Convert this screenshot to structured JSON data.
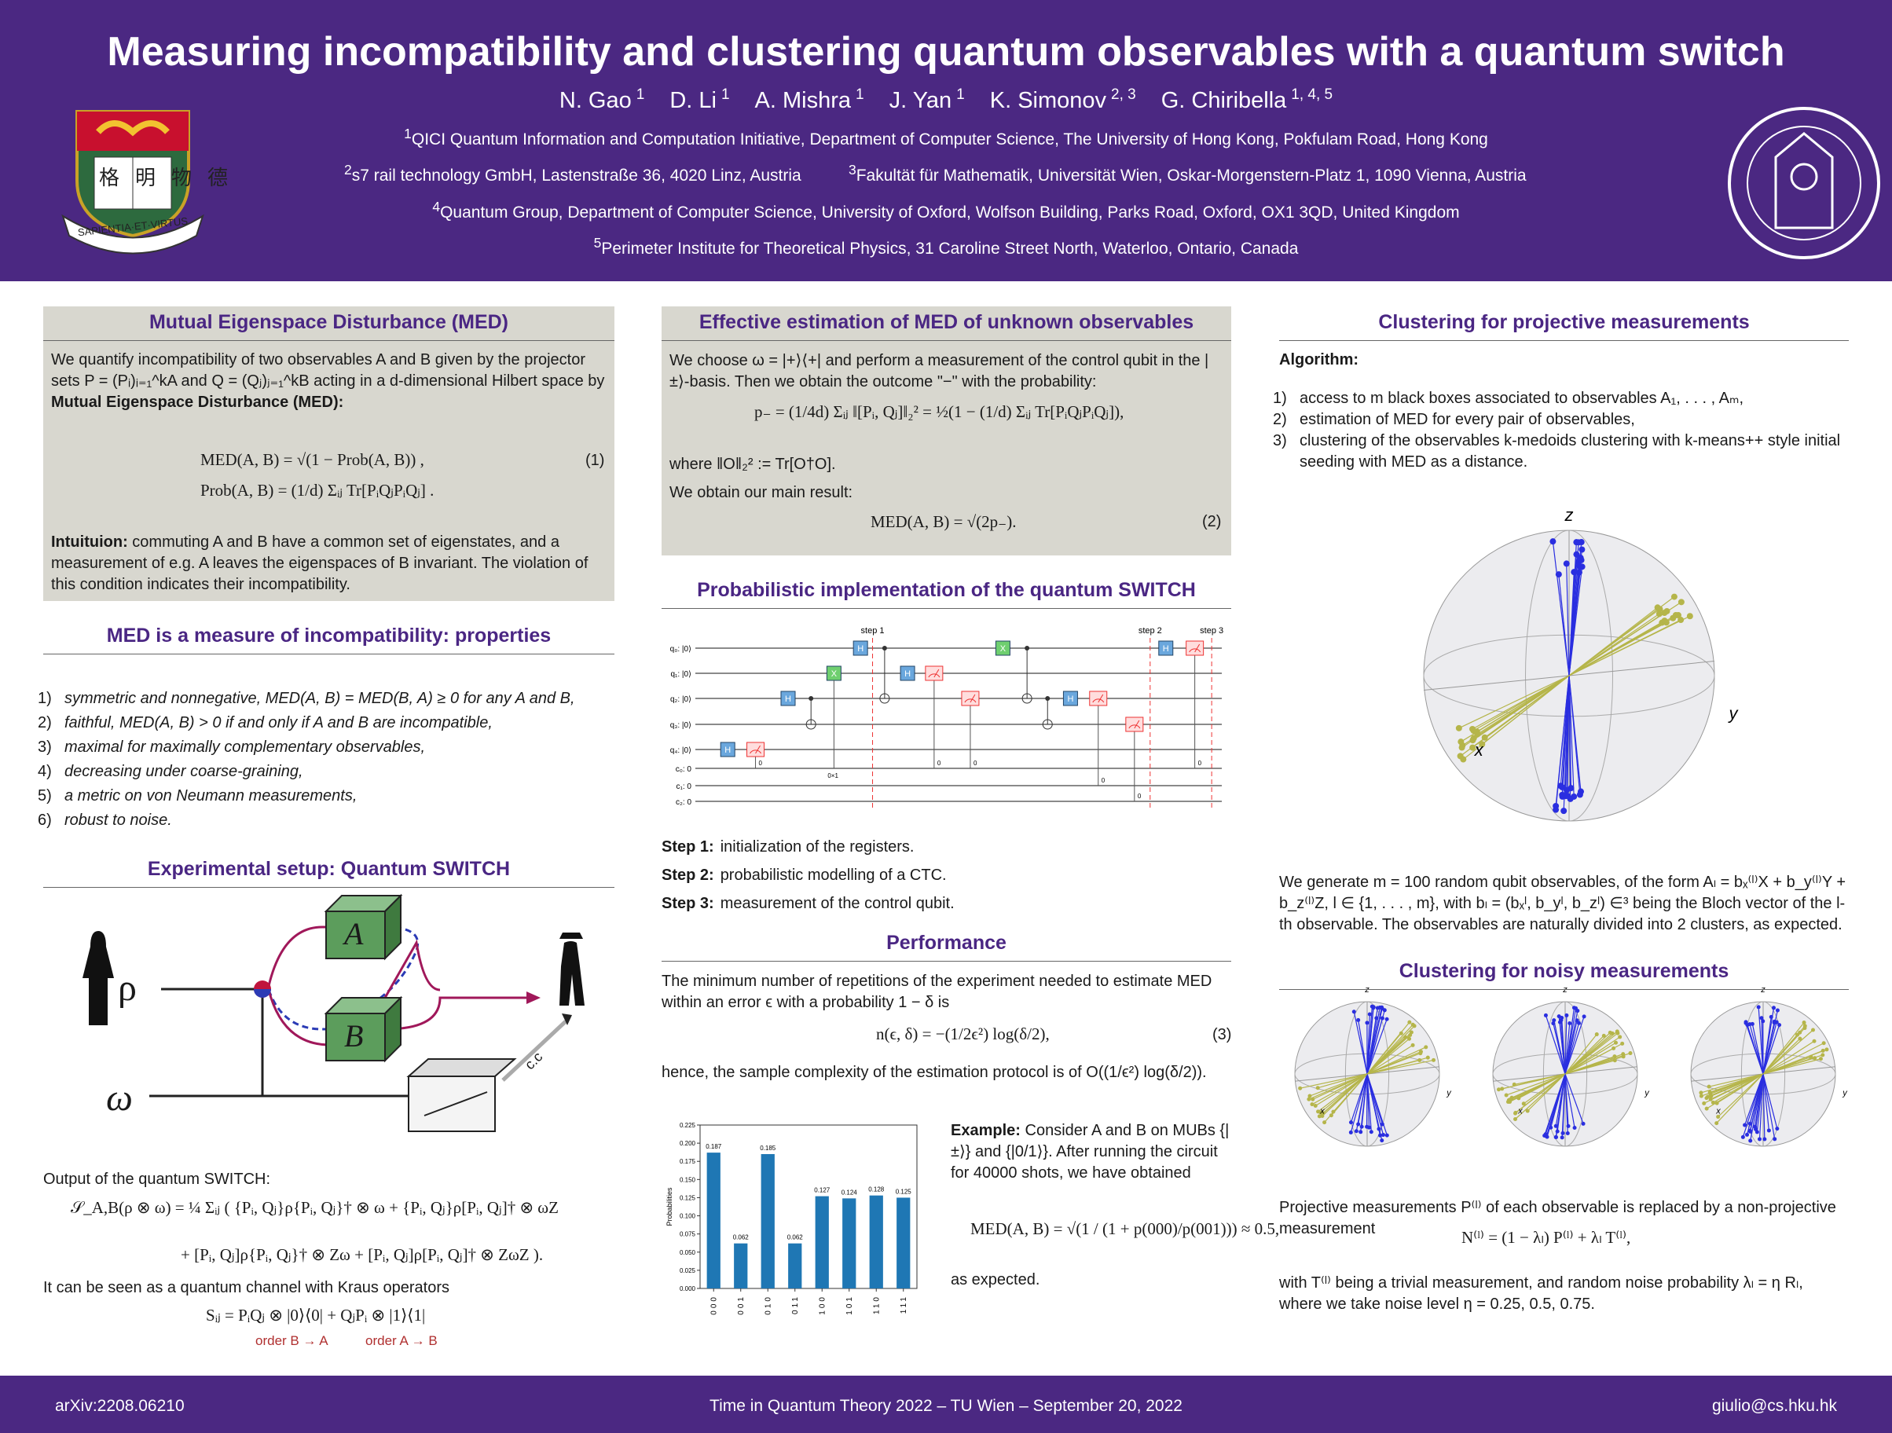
{
  "header": {
    "title": "Measuring incompatibility and clustering quantum observables with a quantum switch",
    "authors": [
      {
        "name": "N. Gao",
        "aff": "1"
      },
      {
        "name": "D. Li",
        "aff": "1"
      },
      {
        "name": "A. Mishra",
        "aff": "1"
      },
      {
        "name": "J. Yan",
        "aff": "1"
      },
      {
        "name": "K. Simonov",
        "aff": "2, 3"
      },
      {
        "name": "G. Chiribella",
        "aff": "1, 4, 5"
      }
    ],
    "affiliations": [
      {
        "num": "1",
        "text": "QICI Quantum Information and Computation Initiative, Department of Computer Science, The University of Hong Kong, Pokfulam Road, Hong Kong"
      },
      {
        "num": "2",
        "text": "s7 rail technology GmbH, Lastenstraße 36, 4020 Linz, Austria"
      },
      {
        "num": "3",
        "text": "Fakultät für Mathematik, Universität Wien, Oskar-Morgenstern-Platz 1, 1090 Vienna, Austria"
      },
      {
        "num": "4",
        "text": "Quantum Group, Department of Computer Science, University of Oxford, Wolfson Building, Parks Road, Oxford, OX1 3QD, United Kingdom"
      },
      {
        "num": "5",
        "text": "Perimeter Institute for Theoretical Physics, 31 Caroline Street North, Waterloo, Ontario, Canada"
      }
    ],
    "crest_chars": "格明物德",
    "crest_motto": "SAPIENTIA·ET·VIRTUS"
  },
  "sections": {
    "med": {
      "title": "Mutual Eigenspace Disturbance (MED)",
      "intro": "We quantify incompatibility of two observables A and B given by the projector sets P = (Pᵢ)ᵢ₌₁^kA and Q = (Qⱼ)ⱼ₌₁^kB acting in a d-dimensional Hilbert space by",
      "intro_bold": "Mutual Eigenspace Disturbance (MED):",
      "eq_lines": [
        "MED(A, B) = √(1 − Prob(A, B)) ,",
        "Prob(A, B) = (1/d) Σᵢⱼ Tr[PᵢQⱼPᵢQⱼ] ."
      ],
      "eq_number": "(1)",
      "intuition_label": "Intuituion:",
      "intuition_text": "commuting A and B have a common set of eigenstates, and a measurement of e.g. A leaves the eigenspaces of B invariant. The violation of this condition indicates their incompatibility."
    },
    "properties": {
      "title": "MED is a measure of incompatibility: properties",
      "items": [
        {
          "num": "1)",
          "text": "symmetric and nonnegative, MED(A, B) = MED(B, A) ≥ 0 for any A and B,"
        },
        {
          "num": "2)",
          "text": "faithful, MED(A, B) > 0 if and only if A and B are incompatible,"
        },
        {
          "num": "3)",
          "text": "maximal for maximally complementary observables,"
        },
        {
          "num": "4)",
          "text": "decreasing under coarse-graining,"
        },
        {
          "num": "5)",
          "text": "a metric on von Neumann measurements,"
        },
        {
          "num": "6)",
          "text": "robust to noise."
        }
      ]
    },
    "setup": {
      "title": "Experimental setup: Quantum SWITCH",
      "labels": {
        "rho": "ρ",
        "omega": "ω",
        "a": "A",
        "b": "B",
        "cc": "c.c"
      },
      "output_intro": "Output of the quantum SWITCH:",
      "output_eq": [
        "𝒮_A,B(ρ ⊗ ω) = ¼ Σᵢⱼ ( {Pᵢ, Qⱼ}ρ{Pᵢ, Qⱼ}† ⊗ ω + {Pᵢ, Qⱼ}ρ[Pᵢ, Qⱼ]† ⊗ ωZ",
        "+ [Pᵢ, Qⱼ]ρ{Pᵢ, Qⱼ}† ⊗ Zω + [Pᵢ, Qⱼ]ρ[Pᵢ, Qⱼ]† ⊗ ZωZ )."
      ],
      "kraus_intro": "It can be seen as a quantum channel with Kraus operators",
      "kraus_eq": "Sᵢⱼ = PᵢQⱼ ⊗ |0⟩⟨0| + QⱼPᵢ ⊗ |1⟩⟨1|",
      "orders": [
        "order B → A",
        "order A → B"
      ]
    },
    "estimation": {
      "title": "Effective estimation of MED of unknown observables",
      "p1": "We choose ω = |+⟩⟨+| and perform a measurement of the control qubit in the |±⟩-basis. Then we obtain the outcome \"−\" with the probability:",
      "eq": "p₋ = (1/4d) Σᵢⱼ ‖[Pᵢ, Qⱼ]‖₂² = ½(1 − (1/d) Σᵢⱼ Tr[PᵢQⱼPᵢQⱼ]),",
      "p2": "where ‖O‖₂² := Tr[O†O].",
      "p3": "We obtain our main result:",
      "eq2": "MED(A, B) = √(2p₋).",
      "eq2_number": "(2)"
    },
    "circuit": {
      "title": "Probabilistic implementation of the quantum SWITCH",
      "registers": [
        "q₀: |0⟩",
        "q₁: |0⟩",
        "q₂: |0⟩",
        "q₃: |0⟩",
        "q₄: |0⟩",
        "c₀: 0",
        "c₁: 0",
        "c₂: 0"
      ],
      "steps": [
        "step 1",
        "step 2",
        "step 3"
      ],
      "gates": [
        "H",
        "X"
      ],
      "cbit_labels": [
        "0",
        "0×1"
      ],
      "step_notes": [
        {
          "label": "Step 1:",
          "text": "initialization of the registers."
        },
        {
          "label": "Step 2:",
          "text": "probabilistic modelling of a CTC."
        },
        {
          "label": "Step 3:",
          "text": "measurement of the control qubit."
        }
      ]
    },
    "performance": {
      "title": "Performance",
      "p1": "The minimum number of repetitions of the experiment needed to estimate MED within an error ϵ with a probability 1 − δ is",
      "eq": "n(ϵ, δ) = −(1/2ϵ²) log(δ/2),",
      "eq_number": "(3)",
      "p2": "hence, the sample complexity of the estimation protocol is of O((1/ϵ²) log(δ/2)).",
      "example_label": "Example:",
      "example_text": "Consider A and B on MUBs {|±⟩} and {|0/1⟩}. After running the circuit for 40000 shots, we have obtained",
      "example_eq": "MED(A, B) = √(1 / (1 + p(000)/p(001))) ≈ 0.5,",
      "example_end": "as expected."
    },
    "clustering": {
      "title": "Clustering for projective measurements",
      "algorithm_label": "Algorithm:",
      "items": [
        {
          "num": "1)",
          "text": "access to m black boxes associated to observables A₁, . . . , Aₘ,"
        },
        {
          "num": "2)",
          "text": "estimation of MED for every pair of observables,"
        },
        {
          "num": "3)",
          "text": "clustering of the observables k-medoids clustering with k-means++ style initial seeding with MED as a distance."
        }
      ],
      "axes": [
        "z",
        "x",
        "y"
      ],
      "p1": "We generate m = 100 random qubit observables, of the form Aₗ = bₓ⁽ˡ⁾X + b_y⁽ˡ⁾Y + b_z⁽ˡ⁾Z, l ∈ {1, . . . , m}, with bₗ = (bₓˡ, b_yˡ, b_zˡ) ∈³ being the Bloch vector of the l-th observable. The observables are naturally divided into 2 clusters, as expected."
    },
    "noisy": {
      "title": "Clustering for noisy measurements",
      "axes": [
        "z",
        "x",
        "y"
      ],
      "p1": "Projective measurements P⁽ˡ⁾ of each observable is replaced by a non-projective measurement",
      "eq": "N⁽ˡ⁾ = (1 − λₗ) P⁽ˡ⁾ + λₗ T⁽ˡ⁾,",
      "p2": "with T⁽ˡ⁾ being a trivial measurement, and random noise probability λₗ = η Rₗ, where we take noise level η = 0.25, 0.5, 0.75."
    }
  },
  "chart_data": {
    "type": "bar",
    "ylabel": "Probabilities",
    "categories": [
      "000",
      "001",
      "010",
      "011",
      "100",
      "101",
      "110",
      "111"
    ],
    "values": [
      0.187,
      0.062,
      0.185,
      0.062,
      0.127,
      0.124,
      0.128,
      0.125
    ],
    "color": "#1f77b4",
    "ylim": [
      0,
      0.225
    ],
    "yticks": [
      {
        "value": 0,
        "label": "0.000"
      },
      0.025,
      {
        "value": 0.05,
        "label": "0.050"
      },
      0.075,
      {
        "value": 0.1,
        "label": "0.100"
      },
      0.125,
      {
        "value": 0.15,
        "label": "0.150"
      },
      0.175,
      {
        "value": 0.2,
        "label": "0.200"
      },
      0.225
    ]
  },
  "footer": {
    "left": "arXiv:2208.06210",
    "center": "Time in Quantum Theory 2022 – TU Wien – September 20, 2022",
    "right": "giulio@cs.hku.hk"
  }
}
